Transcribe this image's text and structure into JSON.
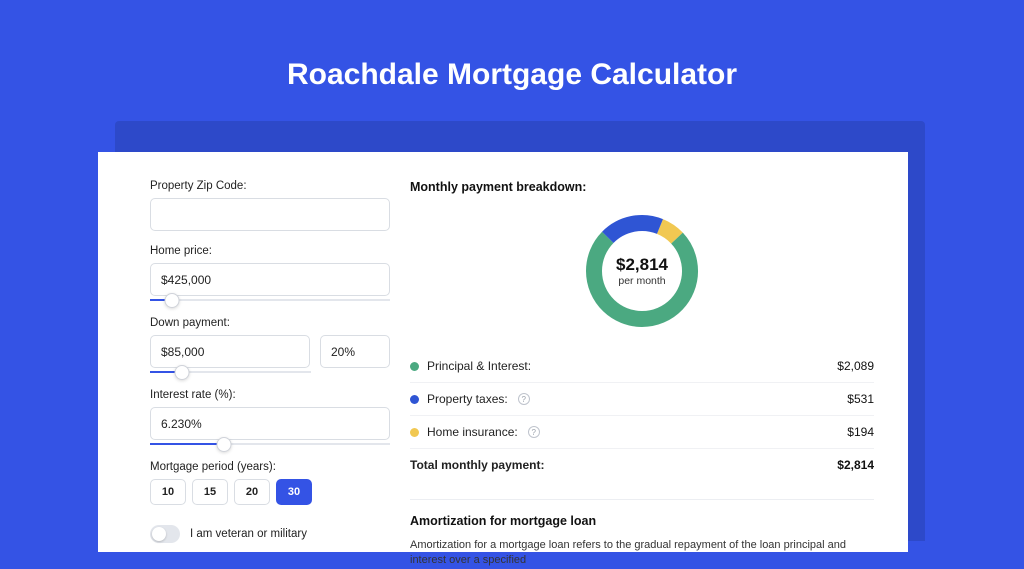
{
  "page": {
    "title": "Roachdale Mortgage Calculator",
    "background_color": "#3453e5",
    "shadow_color": "#2d49c9",
    "card_bg": "#ffffff"
  },
  "form": {
    "zip": {
      "label": "Property Zip Code:",
      "value": ""
    },
    "home_price": {
      "label": "Home price:",
      "value": "$425,000",
      "slider_pct": 9
    },
    "down_payment": {
      "label": "Down payment:",
      "amount": "$85,000",
      "percent": "20%",
      "slider_pct": 20
    },
    "interest_rate": {
      "label": "Interest rate (%):",
      "value": "6.230%",
      "slider_pct": 31
    },
    "mortgage_period": {
      "label": "Mortgage period (years):",
      "options": [
        "10",
        "15",
        "20",
        "30"
      ],
      "selected_index": 3
    },
    "veteran": {
      "label": "I am veteran or military",
      "on": false
    }
  },
  "breakdown": {
    "title": "Monthly payment breakdown:",
    "donut": {
      "center_amount": "$2,814",
      "center_sub": "per month",
      "segments": [
        {
          "key": "principal_interest",
          "value": 2089,
          "color": "#4ba981"
        },
        {
          "key": "property_taxes",
          "value": 531,
          "color": "#2f55d4"
        },
        {
          "key": "home_insurance",
          "value": 194,
          "color": "#f1c852"
        }
      ],
      "stroke_width": 16
    },
    "rows": [
      {
        "label": "Principal & Interest:",
        "amount": "$2,089",
        "dot_color": "#4ba981",
        "has_info": false
      },
      {
        "label": "Property taxes:",
        "amount": "$531",
        "dot_color": "#2f55d4",
        "has_info": true
      },
      {
        "label": "Home insurance:",
        "amount": "$194",
        "dot_color": "#f1c852",
        "has_info": true
      }
    ],
    "total": {
      "label": "Total monthly payment:",
      "amount": "$2,814"
    }
  },
  "amortization": {
    "title": "Amortization for mortgage loan",
    "text": "Amortization for a mortgage loan refers to the gradual repayment of the loan principal and interest over a specified"
  }
}
